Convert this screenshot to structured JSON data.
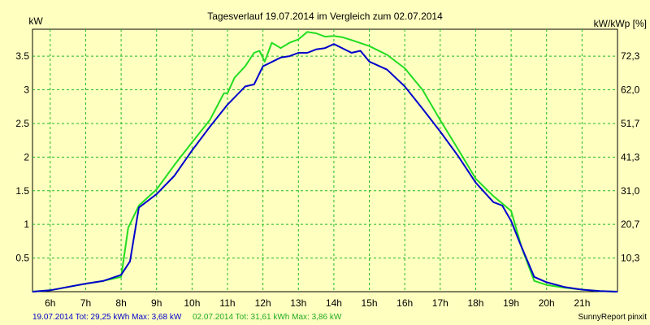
{
  "chart_data": {
    "type": "line",
    "title": "Tagesverlauf 19.07.2014 im Vergleich zum 02.07.2014",
    "ylabel_left": "kW",
    "ylabel_right": "kW/kWp [%]",
    "xlim": [
      5.5,
      22.0
    ],
    "ylim": [
      0,
      3.9
    ],
    "x_ticks": [
      {
        "x": 6,
        "label": "6h"
      },
      {
        "x": 7,
        "label": "7h"
      },
      {
        "x": 8,
        "label": "8h"
      },
      {
        "x": 9,
        "label": "9h"
      },
      {
        "x": 10,
        "label": "10h"
      },
      {
        "x": 11,
        "label": "11h"
      },
      {
        "x": 12,
        "label": "12h"
      },
      {
        "x": 13,
        "label": "13h"
      },
      {
        "x": 14,
        "label": "14h"
      },
      {
        "x": 15,
        "label": "15h"
      },
      {
        "x": 16,
        "label": "16h"
      },
      {
        "x": 17,
        "label": "17h"
      },
      {
        "x": 18,
        "label": "18h"
      },
      {
        "x": 19,
        "label": "19h"
      },
      {
        "x": 20,
        "label": "20h"
      },
      {
        "x": 21,
        "label": "21h"
      }
    ],
    "y_ticks_left": [
      {
        "y": 0.5,
        "label": "0.5"
      },
      {
        "y": 1,
        "label": "1"
      },
      {
        "y": 1.5,
        "label": "1.5"
      },
      {
        "y": 2,
        "label": "2"
      },
      {
        "y": 2.5,
        "label": "2.5"
      },
      {
        "y": 3,
        "label": "3"
      },
      {
        "y": 3.5,
        "label": "3.5"
      }
    ],
    "y_ticks_right": [
      {
        "y": 0.5,
        "label": "10,3"
      },
      {
        "y": 1,
        "label": "20,7"
      },
      {
        "y": 1.5,
        "label": "31,0"
      },
      {
        "y": 2,
        "label": "41,3"
      },
      {
        "y": 2.5,
        "label": "51,7"
      },
      {
        "y": 3,
        "label": "62,0"
      },
      {
        "y": 3.5,
        "label": "72,3"
      }
    ],
    "grid": true,
    "series": [
      {
        "legend": "02.07.2014 Tot: 31,61 kWh Max: 3,86 kW",
        "color": "#22dd22",
        "points": [
          [
            5.5,
            0
          ],
          [
            6.0,
            0.02
          ],
          [
            6.5,
            0.07
          ],
          [
            7.0,
            0.12
          ],
          [
            7.5,
            0.16
          ],
          [
            8.0,
            0.22
          ],
          [
            8.2,
            0.95
          ],
          [
            8.5,
            1.28
          ],
          [
            9.0,
            1.52
          ],
          [
            9.5,
            1.88
          ],
          [
            10.0,
            2.22
          ],
          [
            10.5,
            2.55
          ],
          [
            10.75,
            2.8
          ],
          [
            10.9,
            2.95
          ],
          [
            11.0,
            2.95
          ],
          [
            11.2,
            3.18
          ],
          [
            11.5,
            3.35
          ],
          [
            11.75,
            3.55
          ],
          [
            11.9,
            3.58
          ],
          [
            12.05,
            3.42
          ],
          [
            12.25,
            3.7
          ],
          [
            12.5,
            3.62
          ],
          [
            12.75,
            3.7
          ],
          [
            13.0,
            3.75
          ],
          [
            13.25,
            3.86
          ],
          [
            13.5,
            3.84
          ],
          [
            13.75,
            3.79
          ],
          [
            14.0,
            3.8
          ],
          [
            14.25,
            3.78
          ],
          [
            14.5,
            3.74
          ],
          [
            15.0,
            3.65
          ],
          [
            15.5,
            3.52
          ],
          [
            16.0,
            3.32
          ],
          [
            16.5,
            3.0
          ],
          [
            17.0,
            2.55
          ],
          [
            17.5,
            2.12
          ],
          [
            18.0,
            1.68
          ],
          [
            18.5,
            1.42
          ],
          [
            19.0,
            1.2
          ],
          [
            19.3,
            0.65
          ],
          [
            19.65,
            0.16
          ],
          [
            20.0,
            0.1
          ],
          [
            20.5,
            0.06
          ],
          [
            21.0,
            0.03
          ],
          [
            21.5,
            0.01
          ],
          [
            22.0,
            0
          ]
        ]
      },
      {
        "legend": "19.07.2014 Tot: 29,25 kWh Max: 3,68 kW",
        "color": "#0000cc",
        "points": [
          [
            5.5,
            0
          ],
          [
            6.0,
            0.02
          ],
          [
            6.5,
            0.07
          ],
          [
            7.0,
            0.12
          ],
          [
            7.5,
            0.16
          ],
          [
            8.0,
            0.25
          ],
          [
            8.25,
            0.45
          ],
          [
            8.5,
            1.25
          ],
          [
            9.0,
            1.45
          ],
          [
            9.5,
            1.72
          ],
          [
            10.0,
            2.1
          ],
          [
            10.5,
            2.45
          ],
          [
            11.0,
            2.78
          ],
          [
            11.5,
            3.05
          ],
          [
            11.75,
            3.08
          ],
          [
            12.0,
            3.35
          ],
          [
            12.5,
            3.48
          ],
          [
            12.75,
            3.5
          ],
          [
            13.0,
            3.55
          ],
          [
            13.25,
            3.55
          ],
          [
            13.5,
            3.6
          ],
          [
            13.75,
            3.62
          ],
          [
            14.0,
            3.68
          ],
          [
            14.5,
            3.55
          ],
          [
            14.75,
            3.58
          ],
          [
            15.0,
            3.42
          ],
          [
            15.5,
            3.3
          ],
          [
            16.0,
            3.05
          ],
          [
            16.5,
            2.72
          ],
          [
            17.0,
            2.38
          ],
          [
            17.5,
            2.02
          ],
          [
            18.0,
            1.62
          ],
          [
            18.5,
            1.33
          ],
          [
            18.75,
            1.28
          ],
          [
            19.0,
            1.05
          ],
          [
            19.25,
            0.72
          ],
          [
            19.65,
            0.22
          ],
          [
            20.0,
            0.14
          ],
          [
            20.5,
            0.07
          ],
          [
            21.0,
            0.03
          ],
          [
            21.5,
            0.01
          ],
          [
            22.0,
            0
          ]
        ]
      }
    ]
  },
  "footer": {
    "legend_blue": "19.07.2014 Tot: 29,25 kWh Max: 3,68 kW",
    "legend_green": "02.07.2014 Tot: 31,61 kWh Max: 3,86 kW",
    "brand": "SunnyReport pinxit"
  }
}
